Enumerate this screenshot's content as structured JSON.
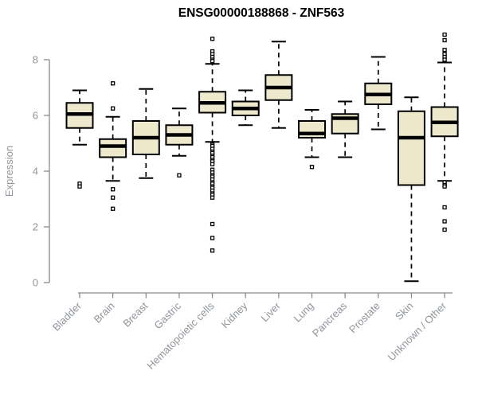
{
  "colors": {
    "box_fill": "#EEE8CD",
    "box_stroke": "#000000",
    "axis_line": "#8a8a8a",
    "axis_text": "#8f959c",
    "title_text": "#000000",
    "background": "#ffffff"
  },
  "chart_data": {
    "type": "boxplot",
    "title": "ENSG00000188868 - ZNF563",
    "xlabel": "",
    "ylabel": "Expression",
    "ylim": [
      0,
      9
    ],
    "yticks": [
      0,
      2,
      4,
      6,
      8
    ],
    "grid": false,
    "legend": "none",
    "categories": [
      "Bladder",
      "Brain",
      "Breast",
      "Gastric",
      "Hematopoietic cells",
      "Kidney",
      "Liver",
      "Lung",
      "Pancreas",
      "Prostate",
      "Skin",
      "Unknown / Other"
    ],
    "boxes": [
      {
        "category": "Bladder",
        "whisker_low": 4.95,
        "q1": 5.55,
        "median": 6.05,
        "q3": 6.45,
        "whisker_high": 6.9,
        "outliers": [
          3.55,
          3.45
        ]
      },
      {
        "category": "Brain",
        "whisker_low": 3.65,
        "q1": 4.5,
        "median": 4.9,
        "q3": 5.15,
        "whisker_high": 5.95,
        "outliers": [
          7.15,
          6.25,
          3.35,
          3.05,
          2.65
        ]
      },
      {
        "category": "Breast",
        "whisker_low": 3.75,
        "q1": 4.6,
        "median": 5.2,
        "q3": 5.8,
        "whisker_high": 6.95,
        "outliers": []
      },
      {
        "category": "Gastric",
        "whisker_low": 4.55,
        "q1": 4.95,
        "median": 5.3,
        "q3": 5.65,
        "whisker_high": 6.25,
        "outliers": [
          3.85
        ]
      },
      {
        "category": "Hematopoietic cells",
        "whisker_low": 5.05,
        "q1": 6.1,
        "median": 6.45,
        "q3": 6.85,
        "whisker_high": 7.85,
        "outliers": [
          8.75,
          8.3,
          8.2,
          8.1,
          8.0,
          7.95,
          4.95,
          4.9,
          4.8,
          4.7,
          4.65,
          4.55,
          4.5,
          4.4,
          4.35,
          4.25,
          4.05,
          3.95,
          3.85,
          3.8,
          3.7,
          3.6,
          3.55,
          3.45,
          3.4,
          3.3,
          3.2,
          3.15,
          3.05,
          2.1,
          1.6,
          1.15
        ]
      },
      {
        "category": "Kidney",
        "whisker_low": 5.65,
        "q1": 6.0,
        "median": 6.25,
        "q3": 6.5,
        "whisker_high": 6.9,
        "outliers": []
      },
      {
        "category": "Liver",
        "whisker_low": 5.55,
        "q1": 6.55,
        "median": 7.0,
        "q3": 7.45,
        "whisker_high": 8.65,
        "outliers": []
      },
      {
        "category": "Lung",
        "whisker_low": 4.5,
        "q1": 5.2,
        "median": 5.35,
        "q3": 5.8,
        "whisker_high": 6.2,
        "outliers": [
          4.15
        ]
      },
      {
        "category": "Pancreas",
        "whisker_low": 4.5,
        "q1": 5.35,
        "median": 5.9,
        "q3": 6.05,
        "whisker_high": 6.5,
        "outliers": []
      },
      {
        "category": "Prostate",
        "whisker_low": 5.5,
        "q1": 6.4,
        "median": 6.75,
        "q3": 7.15,
        "whisker_high": 8.1,
        "outliers": []
      },
      {
        "category": "Skin",
        "whisker_low": 0.05,
        "q1": 3.5,
        "median": 5.2,
        "q3": 6.15,
        "whisker_high": 6.65,
        "outliers": []
      },
      {
        "category": "Unknown / Other",
        "whisker_low": 3.65,
        "q1": 5.25,
        "median": 5.75,
        "q3": 6.3,
        "whisker_high": 7.9,
        "outliers": [
          8.9,
          8.7,
          8.35,
          8.2,
          8.1,
          8.0,
          3.6,
          3.5,
          3.45,
          2.7,
          2.2,
          1.9
        ]
      }
    ]
  }
}
